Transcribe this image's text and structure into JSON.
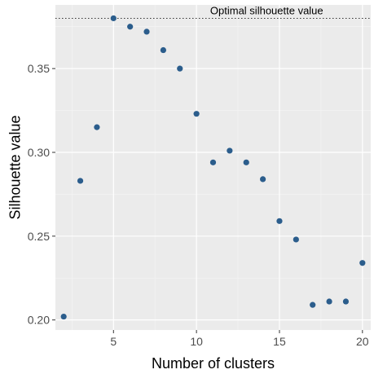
{
  "chart_data": {
    "type": "scatter",
    "title": "",
    "xlabel": "Number of clusters",
    "ylabel": "Silhouette value",
    "xlim": [
      1.5,
      20.5
    ],
    "ylim": [
      0.194,
      0.388
    ],
    "x_ticks": [
      5,
      10,
      15,
      20
    ],
    "y_ticks": [
      0.2,
      0.25,
      0.3,
      0.35
    ],
    "y_tick_labels": [
      "0.20",
      "0.25",
      "0.30",
      "0.35"
    ],
    "grid": true,
    "panel_color": "#ebebeb",
    "point_color": "#2b5d8c",
    "reference_line": {
      "y": 0.38,
      "style": "dotted",
      "label": "Optimal silhouette value"
    },
    "x": [
      2,
      3,
      4,
      5,
      6,
      7,
      8,
      9,
      10,
      11,
      12,
      13,
      14,
      15,
      16,
      17,
      18,
      19,
      20
    ],
    "y": [
      0.202,
      0.283,
      0.315,
      0.38,
      0.375,
      0.372,
      0.361,
      0.35,
      0.323,
      0.294,
      0.301,
      0.294,
      0.284,
      0.259,
      0.248,
      0.209,
      0.211,
      0.211,
      0.234
    ]
  }
}
